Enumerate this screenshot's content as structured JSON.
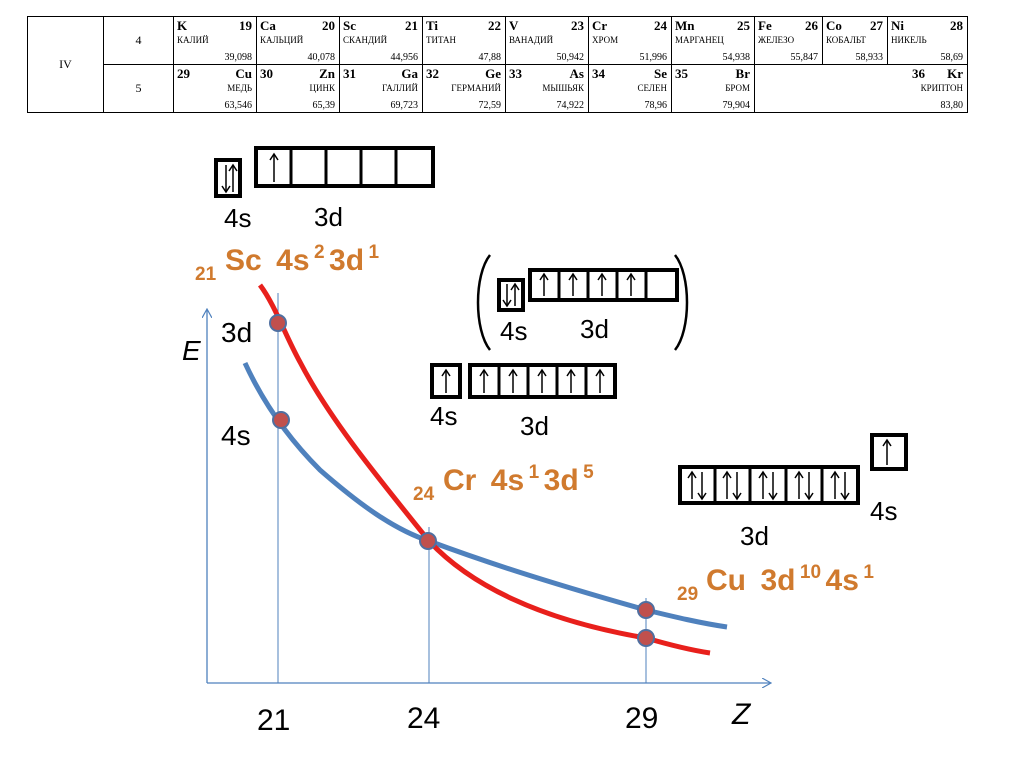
{
  "table": {
    "period": "IV",
    "rows": [
      {
        "row": "4",
        "cells": [
          {
            "sym": "K",
            "num": "19",
            "name": "КАЛИЙ",
            "mass": "39,098"
          },
          {
            "sym": "Ca",
            "num": "20",
            "name": "КАЛЬЦИЙ",
            "mass": "40,078"
          },
          {
            "sym": "Sc",
            "num": "21",
            "name": "СКАНДИЙ",
            "mass": "44,956"
          },
          {
            "sym": "Ti",
            "num": "22",
            "name": "ТИТАН",
            "mass": "47,88"
          },
          {
            "sym": "V",
            "num": "23",
            "name": "ВАНАДИЙ",
            "mass": "50,942"
          },
          {
            "sym": "Cr",
            "num": "24",
            "name": "ХРОМ",
            "mass": "51,996"
          },
          {
            "sym": "Mn",
            "num": "25",
            "name": "МАРГАНЕЦ",
            "mass": "54,938"
          },
          {
            "sym": "Fe",
            "num": "26",
            "name": "ЖЕЛЕЗО",
            "mass": "55,847"
          },
          {
            "sym": "Co",
            "num": "27",
            "name": "КОБАЛЬТ",
            "mass": "58,933"
          },
          {
            "sym": "Ni",
            "num": "28",
            "name": "НИКЕЛЬ",
            "mass": "58,69"
          }
        ]
      },
      {
        "row": "5",
        "cells": [
          {
            "sym": "Cu",
            "num": "29",
            "name": "МЕДЬ",
            "mass": "63,546"
          },
          {
            "sym": "Zn",
            "num": "30",
            "name": "ЦИНК",
            "mass": "65,39"
          },
          {
            "sym": "Ga",
            "num": "31",
            "name": "ГАЛЛИЙ",
            "mass": "69,723"
          },
          {
            "sym": "Ge",
            "num": "32",
            "name": "ГЕРМАНИЙ",
            "mass": "72,59"
          },
          {
            "sym": "As",
            "num": "33",
            "name": "МЫШЬЯК",
            "mass": "74,922"
          },
          {
            "sym": "Se",
            "num": "34",
            "name": "СЕЛЕН",
            "mass": "78,96"
          },
          {
            "sym": "Br",
            "num": "35",
            "name": "БРОМ",
            "mass": "79,904"
          },
          {
            "sym": "Kr",
            "num": "36",
            "name": "КРИПТОН",
            "mass": "83,80"
          }
        ]
      }
    ]
  },
  "colors": {
    "curve_3d": "#e8201c",
    "curve_4s": "#4f81bd",
    "axis": "#4f81bd",
    "marker_fill": "#c0504d",
    "marker_stroke": "#4f6fa0",
    "formula": "#d07a2e"
  },
  "axes": {
    "y_label": "E",
    "x_label": "Z",
    "ticks": [
      "21",
      "24",
      "29"
    ]
  },
  "curve_labels": {
    "upper": "3d",
    "lower": "4s"
  },
  "sc": {
    "z": "21",
    "sym": "Sc",
    "a": "4s",
    "a_exp": "2",
    "b": "3d",
    "b_exp": "1",
    "box_4s": "4s",
    "box_3d": "3d"
  },
  "cr": {
    "z": "24",
    "sym": "Cr",
    "a": "4s",
    "a_exp": "1",
    "b": "3d",
    "b_exp": "5",
    "alt_4s": "4s",
    "alt_3d": "3d",
    "box_4s": "4s",
    "box_3d": "3d"
  },
  "cu": {
    "z": "29",
    "sym": "Cu",
    "a": "3d",
    "a_exp": "10",
    "b": "4s",
    "b_exp": "1",
    "box_3d": "3d",
    "box_4s": "4s"
  }
}
